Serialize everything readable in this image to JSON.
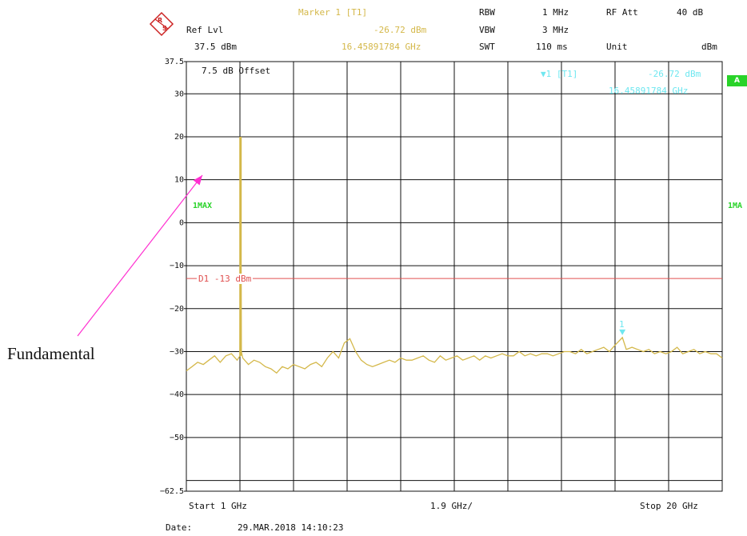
{
  "header": {
    "ref_lvl_label": "Ref Lvl",
    "ref_lvl_value": "37.5 dBm",
    "marker_label": "Marker 1 [T1]",
    "marker_level": "-26.72 dBm",
    "marker_freq": "16.45891784 GHz",
    "rbw_label": "RBW",
    "rbw_value": "1 MHz",
    "vbw_label": "VBW",
    "vbw_value": "3 MHz",
    "swt_label": "SWT",
    "swt_value": "110 ms",
    "rfatt_label": "RF Att",
    "rfatt_value": "40 dB",
    "unit_label": "Unit",
    "unit_value": "dBm"
  },
  "plot": {
    "offset_text": "7.5 dB Offset",
    "marker_tag": "1 [T1]",
    "marker_readout_level": "-26.72 dBm",
    "marker_readout_freq": "16.45891784 GHz",
    "badge_a": "A",
    "trace_left_label": "1MAX",
    "trace_right_label": "1MA",
    "marker_point_label": "1",
    "display_line_label": "D1  -13 dBm"
  },
  "footer": {
    "start": "Start 1 GHz",
    "span_per_div": "1.9 GHz/",
    "stop": "Stop 20 GHz",
    "date_label": "Date:",
    "date_value": "29.MAR.2018  14:10:23"
  },
  "annotation": {
    "text": "Fundamental"
  },
  "colors": {
    "trace": "#d4b84a",
    "marker": "#6fe7f0",
    "display_line": "#e05050",
    "arrow": "#ff2fd0",
    "badge": "#29d329"
  },
  "chart_data": {
    "type": "line",
    "title": "",
    "xlabel": "",
    "ylabel": "",
    "xlim": [
      1,
      20
    ],
    "ylim": [
      -62.5,
      37.5
    ],
    "y_ticks": [
      37.5,
      30,
      20,
      10,
      0,
      -10,
      -20,
      -30,
      -40,
      -50,
      -62.5
    ],
    "grid": true,
    "series": [
      {
        "x": [
          1.0,
          1.2,
          1.4,
          1.6,
          1.8,
          2.0,
          2.2,
          2.4,
          2.6,
          2.8,
          2.9,
          2.92,
          2.95,
          3.0,
          3.2,
          3.4,
          3.6,
          3.8,
          4.0,
          4.2,
          4.4,
          4.6,
          4.8,
          5.0,
          5.2,
          5.4,
          5.6,
          5.8,
          6.0,
          6.2,
          6.4,
          6.6,
          6.8,
          7.0,
          7.2,
          7.4,
          7.6,
          7.8,
          8.0,
          8.2,
          8.4,
          8.6,
          8.8,
          9.0,
          9.2,
          9.4,
          9.6,
          9.8,
          10.0,
          10.2,
          10.4,
          10.6,
          10.8,
          11.0,
          11.2,
          11.4,
          11.6,
          11.8,
          12.0,
          12.2,
          12.4,
          12.6,
          12.8,
          13.0,
          13.2,
          13.4,
          13.6,
          13.8,
          14.0,
          14.2,
          14.4,
          14.6,
          14.8,
          15.0,
          15.2,
          15.4,
          15.6,
          15.8,
          16.0,
          16.2,
          16.46,
          16.6,
          16.8,
          17.0,
          17.2,
          17.4,
          17.6,
          17.8,
          18.0,
          18.2,
          18.4,
          18.6,
          18.8,
          19.0,
          19.2,
          19.4,
          19.6,
          19.8,
          20.0
        ],
        "y": [
          -34.5,
          -33.5,
          -32.5,
          -33,
          -32,
          -31,
          -32.5,
          -31,
          -30.5,
          -32,
          -31,
          20,
          -30,
          -31.5,
          -33,
          -32,
          -32.5,
          -33.5,
          -34,
          -35,
          -33.5,
          -34,
          -33,
          -33.5,
          -34,
          -33,
          -32.5,
          -33.5,
          -31.5,
          -30,
          -31.5,
          -28,
          -27,
          -30,
          -32,
          -33,
          -33.5,
          -33,
          -32.5,
          -32,
          -32.5,
          -31.5,
          -32,
          -32,
          -31.5,
          -31,
          -32,
          -32.5,
          -31,
          -32,
          -31.5,
          -31,
          -32,
          -31.5,
          -31,
          -32,
          -31,
          -31.5,
          -31,
          -30.5,
          -31,
          -31,
          -30,
          -31,
          -30.5,
          -31,
          -30.5,
          -30.5,
          -31,
          -30.5,
          -30,
          -30,
          -30.5,
          -29.5,
          -30.5,
          -30,
          -29.5,
          -29,
          -30,
          -28.5,
          -26.72,
          -29.5,
          -29,
          -29.5,
          -30,
          -29.5,
          -30.5,
          -30,
          -30.5,
          -30,
          -29,
          -30.5,
          -30,
          -29.5,
          -30.5,
          -30,
          -30.5,
          -30.5,
          -31.5
        ]
      }
    ],
    "display_line": {
      "label": "D1",
      "value": -13
    },
    "marker": {
      "label": "1",
      "x": 16.46,
      "y": -26.72
    }
  }
}
